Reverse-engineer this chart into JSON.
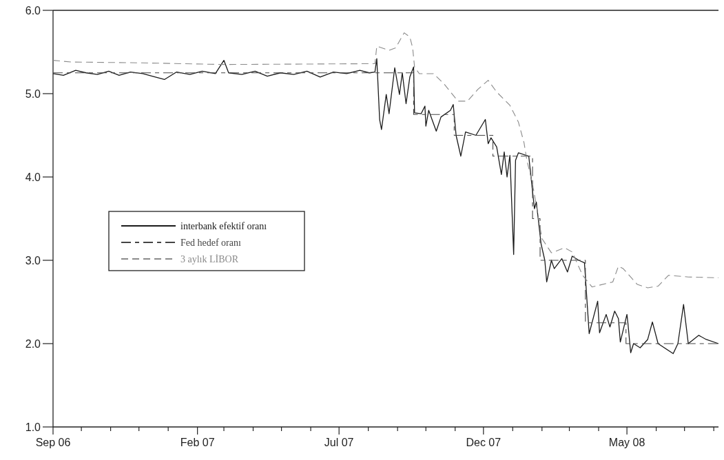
{
  "chart_data": {
    "type": "line",
    "xlim": [
      "2006-09-01",
      "2008-08-06"
    ],
    "xticks": [
      {
        "value": "2006-09-01",
        "label": "Sep 06"
      },
      {
        "value": "2006-10-01",
        "label": null
      },
      {
        "value": "2006-11-01",
        "label": null
      },
      {
        "value": "2006-12-01",
        "label": null
      },
      {
        "value": "2007-01-01",
        "label": null
      },
      {
        "value": "2007-02-01",
        "label": "Feb 07"
      },
      {
        "value": "2007-03-01",
        "label": null
      },
      {
        "value": "2007-04-01",
        "label": null
      },
      {
        "value": "2007-05-01",
        "label": null
      },
      {
        "value": "2007-06-01",
        "label": null
      },
      {
        "value": "2007-07-01",
        "label": "Jul 07"
      },
      {
        "value": "2007-08-01",
        "label": null
      },
      {
        "value": "2007-09-01",
        "label": null
      },
      {
        "value": "2007-10-01",
        "label": null
      },
      {
        "value": "2007-11-01",
        "label": null
      },
      {
        "value": "2007-12-01",
        "label": "Dec 07"
      },
      {
        "value": "2008-01-01",
        "label": null
      },
      {
        "value": "2008-02-01",
        "label": null
      },
      {
        "value": "2008-03-01",
        "label": null
      },
      {
        "value": "2008-04-01",
        "label": null
      },
      {
        "value": "2008-05-01",
        "label": "May 08"
      },
      {
        "value": "2008-06-01",
        "label": null
      },
      {
        "value": "2008-07-01",
        "label": null
      },
      {
        "value": "2008-08-01",
        "label": null
      }
    ],
    "ylim": [
      1,
      6
    ],
    "yticks": [
      {
        "value": 1,
        "label": "1.0"
      },
      {
        "value": 2,
        "label": "2.0"
      },
      {
        "value": 3,
        "label": "3.0"
      },
      {
        "value": 4,
        "label": "4.0"
      },
      {
        "value": 5,
        "label": "5.0"
      },
      {
        "value": 6,
        "label": "6.0"
      }
    ],
    "legend": "left",
    "series": [
      {
        "name": "interbank efektif oranı",
        "color": "#1a1a1a",
        "line_style": "solid",
        "x": [
          "2006-09-01",
          "2006-09-12",
          "2006-09-25",
          "2006-10-06",
          "2006-10-18",
          "2006-10-30",
          "2006-11-10",
          "2006-11-22",
          "2006-12-05",
          "2006-12-15",
          "2006-12-28",
          "2007-01-10",
          "2007-01-24",
          "2007-02-06",
          "2007-02-20",
          "2007-03-01",
          "2007-03-06",
          "2007-03-20",
          "2007-04-03",
          "2007-04-16",
          "2007-04-30",
          "2007-05-14",
          "2007-05-28",
          "2007-06-11",
          "2007-06-25",
          "2007-07-09",
          "2007-07-23",
          "2007-08-02",
          "2007-08-08",
          "2007-08-10",
          "2007-08-13",
          "2007-08-15",
          "2007-08-20",
          "2007-08-23",
          "2007-08-29",
          "2007-09-03",
          "2007-09-06",
          "2007-09-10",
          "2007-09-14",
          "2007-09-18",
          "2007-09-19",
          "2007-09-26",
          "2007-09-30",
          "2007-10-01",
          "2007-10-04",
          "2007-10-12",
          "2007-10-17",
          "2007-10-27",
          "2007-10-30",
          "2007-11-02",
          "2007-11-07",
          "2007-11-12",
          "2007-11-23",
          "2007-12-03",
          "2007-12-06",
          "2007-12-09",
          "2007-12-15",
          "2007-12-20",
          "2007-12-23",
          "2007-12-26",
          "2007-12-29",
          "2008-01-02",
          "2008-01-04",
          "2008-01-07",
          "2008-01-18",
          "2008-01-24",
          "2008-01-26",
          "2008-01-31",
          "2008-02-04",
          "2008-02-06",
          "2008-02-11",
          "2008-02-14",
          "2008-02-22",
          "2008-02-28",
          "2008-03-04",
          "2008-03-11",
          "2008-03-17",
          "2008-03-22",
          "2008-03-31",
          "2008-04-02",
          "2008-04-09",
          "2008-04-13",
          "2008-04-18",
          "2008-04-22",
          "2008-04-24",
          "2008-05-01",
          "2008-05-02",
          "2008-05-05",
          "2008-05-08",
          "2008-05-15",
          "2008-05-23",
          "2008-05-28",
          "2008-06-03",
          "2008-06-19",
          "2008-06-24",
          "2008-06-30",
          "2008-07-05",
          "2008-07-16",
          "2008-07-24",
          "2008-08-06"
        ],
        "values": [
          5.24,
          5.22,
          5.28,
          5.25,
          5.23,
          5.27,
          5.22,
          5.26,
          5.24,
          5.21,
          5.17,
          5.26,
          5.23,
          5.27,
          5.24,
          5.4,
          5.25,
          5.23,
          5.27,
          5.21,
          5.25,
          5.23,
          5.27,
          5.2,
          5.26,
          5.24,
          5.28,
          5.25,
          5.26,
          5.42,
          4.69,
          4.57,
          4.99,
          4.76,
          5.31,
          4.99,
          5.25,
          4.88,
          5.2,
          5.32,
          4.77,
          4.76,
          4.85,
          4.61,
          4.8,
          4.55,
          4.72,
          4.8,
          4.87,
          4.5,
          4.25,
          4.54,
          4.5,
          4.69,
          4.4,
          4.47,
          4.36,
          4.03,
          4.3,
          4.0,
          4.26,
          3.07,
          4.2,
          4.29,
          4.25,
          3.62,
          3.7,
          3.2,
          3.0,
          2.74,
          3.0,
          2.9,
          3.02,
          2.86,
          3.05,
          3.0,
          2.97,
          2.12,
          2.51,
          2.13,
          2.35,
          2.2,
          2.39,
          2.3,
          2.02,
          2.35,
          2.25,
          1.89,
          2.0,
          1.95,
          2.05,
          2.26,
          2.0,
          1.88,
          2.0,
          2.47,
          2.0,
          2.1,
          2.05,
          2.0
        ]
      },
      {
        "name": "Fed hedef oranı",
        "type": "step",
        "color": "#444444",
        "line_style": "dashed",
        "x": [
          "2006-09-01",
          "2007-09-18",
          "2007-10-31",
          "2007-12-11",
          "2008-01-22",
          "2008-01-30",
          "2008-03-18",
          "2008-04-30",
          "2008-08-06"
        ],
        "values": [
          5.25,
          4.75,
          4.5,
          4.25,
          3.5,
          3.0,
          2.25,
          2.0,
          2.0
        ]
      },
      {
        "name": "3 aylık LİBOR",
        "color": "#8a8a8a",
        "line_style": "dashed",
        "x": [
          "2006-09-01",
          "2006-09-20",
          "2006-12-01",
          "2007-03-01",
          "2007-08-08",
          "2007-08-10",
          "2007-08-23",
          "2007-08-30",
          "2007-09-08",
          "2007-09-14",
          "2007-09-17",
          "2007-09-19",
          "2007-09-24",
          "2007-10-09",
          "2007-10-20",
          "2007-11-04",
          "2007-11-14",
          "2007-11-25",
          "2007-12-06",
          "2007-12-15",
          "2007-12-29",
          "2008-01-07",
          "2008-01-13",
          "2008-01-16",
          "2008-01-22",
          "2008-02-01",
          "2008-02-11",
          "2008-02-25",
          "2008-03-04",
          "2008-03-15",
          "2008-03-25",
          "2008-04-16",
          "2008-04-22",
          "2008-04-27",
          "2008-05-12",
          "2008-05-23",
          "2008-06-03",
          "2008-06-14",
          "2008-07-05",
          "2008-08-06"
        ],
        "values": [
          5.4,
          5.38,
          5.37,
          5.35,
          5.36,
          5.57,
          5.52,
          5.55,
          5.73,
          5.68,
          5.55,
          5.32,
          5.24,
          5.24,
          5.12,
          4.91,
          4.91,
          5.05,
          5.16,
          5.02,
          4.86,
          4.66,
          4.41,
          4.2,
          3.92,
          3.26,
          3.09,
          3.15,
          3.1,
          2.82,
          2.68,
          2.74,
          2.93,
          2.9,
          2.71,
          2.67,
          2.69,
          2.82,
          2.8,
          2.79
        ]
      }
    ]
  }
}
